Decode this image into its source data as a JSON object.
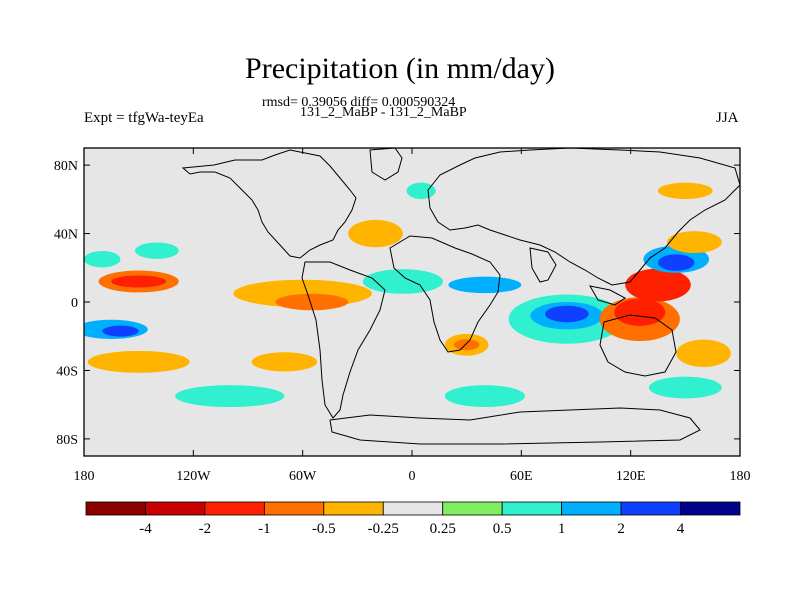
{
  "chart_data": {
    "type": "heatmap",
    "title": "Precipitation (in mm/day)",
    "subtitle_stats": "rmsd= 0.39056 diff= 0.000590324",
    "comparison": "131_2_MaBP - 131_2_MaBP",
    "experiment": "Expt = tfgWa-teyEa",
    "season": "JJA",
    "x_ticks": [
      "180",
      "120W",
      "60W",
      "0",
      "60E",
      "120E",
      "180"
    ],
    "x_tick_values": [
      -180,
      -120,
      -60,
      0,
      60,
      120,
      180
    ],
    "y_ticks": [
      "80N",
      "40N",
      "0",
      "40S",
      "80S"
    ],
    "y_tick_values": [
      80,
      40,
      0,
      -40,
      -80
    ],
    "xlim": [
      -180,
      180
    ],
    "ylim": [
      -90,
      90
    ],
    "colorbar": {
      "labels": [
        "-4",
        "-2",
        "-1",
        "-0.5",
        "-0.25",
        "0.25",
        "0.5",
        "1",
        "2",
        "4"
      ],
      "colors": [
        "#8c0000",
        "#c80000",
        "#ff2000",
        "#ff7000",
        "#ffb400",
        "#e6e6e6",
        "#80ee60",
        "#30f0d0",
        "#00b0ff",
        "#1040ff",
        "#00008c"
      ]
    },
    "anomaly_regions": [
      {
        "lon": -150,
        "lat": 12,
        "rx": 22,
        "ry": 4,
        "value": -1
      },
      {
        "lon": -150,
        "lat": 12,
        "rx": 15,
        "ry": 2.2,
        "value": -2
      },
      {
        "lon": -165,
        "lat": -16,
        "rx": 20,
        "ry": 3.5,
        "value": 1
      },
      {
        "lon": -160,
        "lat": -17,
        "rx": 10,
        "ry": 2,
        "value": 2
      },
      {
        "lon": -60,
        "lat": 5,
        "rx": 38,
        "ry": 5,
        "value": -0.5
      },
      {
        "lon": -55,
        "lat": 0,
        "rx": 20,
        "ry": 3,
        "value": -1
      },
      {
        "lon": -5,
        "lat": 12,
        "rx": 22,
        "ry": 4.5,
        "value": 0.5
      },
      {
        "lon": 40,
        "lat": 10,
        "rx": 20,
        "ry": 3,
        "value": 1
      },
      {
        "lon": 85,
        "lat": -10,
        "rx": 32,
        "ry": 9,
        "value": 0.5
      },
      {
        "lon": 85,
        "lat": -8,
        "rx": 20,
        "ry": 5,
        "value": 1
      },
      {
        "lon": 85,
        "lat": -7,
        "rx": 12,
        "ry": 3,
        "value": 2
      },
      {
        "lon": 125,
        "lat": -10,
        "rx": 22,
        "ry": 8,
        "value": -1
      },
      {
        "lon": 125,
        "lat": -6,
        "rx": 14,
        "ry": 5,
        "value": -2
      },
      {
        "lon": 135,
        "lat": 10,
        "rx": 18,
        "ry": 6,
        "value": -2
      },
      {
        "lon": 145,
        "lat": 25,
        "rx": 18,
        "ry": 5,
        "value": 1
      },
      {
        "lon": 145,
        "lat": 23,
        "rx": 10,
        "ry": 3,
        "value": 2
      },
      {
        "lon": 155,
        "lat": 35,
        "rx": 15,
        "ry": 4,
        "value": -0.5
      },
      {
        "lon": -20,
        "lat": 40,
        "rx": 15,
        "ry": 5,
        "value": -0.5
      },
      {
        "lon": -140,
        "lat": 30,
        "rx": 12,
        "ry": 3,
        "value": 0.5
      },
      {
        "lon": -170,
        "lat": 25,
        "rx": 10,
        "ry": 3,
        "value": 0.5
      },
      {
        "lon": -150,
        "lat": -35,
        "rx": 28,
        "ry": 4,
        "value": -0.5
      },
      {
        "lon": -70,
        "lat": -35,
        "rx": 18,
        "ry": 3.5,
        "value": -0.5
      },
      {
        "lon": -100,
        "lat": -55,
        "rx": 30,
        "ry": 4,
        "value": 0.5
      },
      {
        "lon": 40,
        "lat": -55,
        "rx": 22,
        "ry": 4,
        "value": 0.5
      },
      {
        "lon": 150,
        "lat": -50,
        "rx": 20,
        "ry": 4,
        "value": 0.5
      },
      {
        "lon": 160,
        "lat": -30,
        "rx": 15,
        "ry": 5,
        "value": -0.5
      },
      {
        "lon": 5,
        "lat": 65,
        "rx": 8,
        "ry": 3,
        "value": 0.5
      },
      {
        "lon": 150,
        "lat": 65,
        "rx": 15,
        "ry": 3,
        "value": -0.5
      },
      {
        "lon": 30,
        "lat": -25,
        "rx": 12,
        "ry": 4,
        "value": -0.5
      },
      {
        "lon": 30,
        "lat": -25,
        "rx": 7,
        "ry": 2,
        "value": -1
      }
    ]
  }
}
